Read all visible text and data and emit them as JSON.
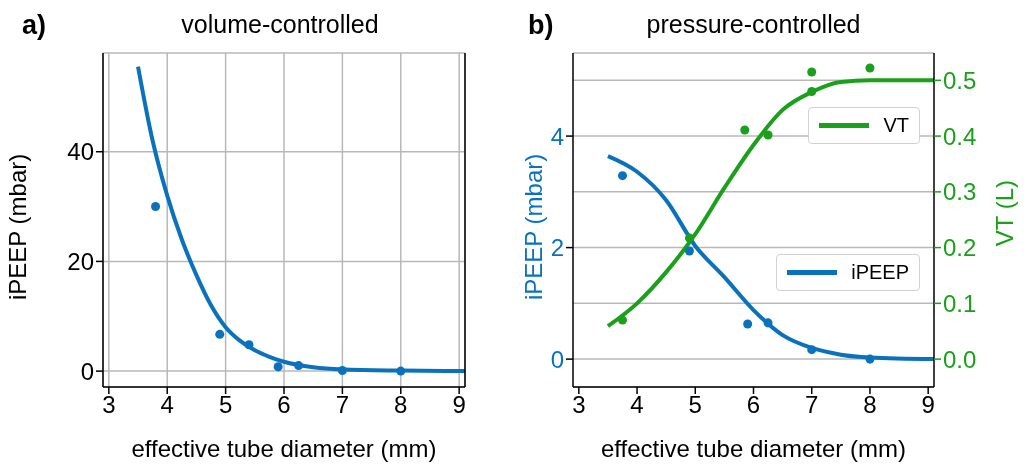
{
  "chart_data": [
    {
      "type": "line",
      "title": "volume-controlled",
      "xlabel": "effective tube diameter (mm)",
      "ylabel": "iPEEP (mbar)",
      "annotations": [
        "a)"
      ],
      "xlim": [
        2.9,
        9.1
      ],
      "xticks": [
        3,
        4,
        5,
        6,
        7,
        8,
        9
      ],
      "ylim": [
        -2.9,
        58
      ],
      "yticks": [
        0,
        20,
        40
      ],
      "grid": true,
      "series": [
        {
          "marker": "none",
          "color": "#0a72bd",
          "x": [
            3.5,
            3.75,
            4,
            4.25,
            4.5,
            4.75,
            5,
            5.25,
            5.5,
            5.75,
            6,
            6.5,
            7,
            8,
            9.1
          ],
          "values": [
            55.5,
            42,
            32,
            24,
            17.5,
            12,
            8,
            5.5,
            3.8,
            2.6,
            1.7,
            0.7,
            0.3,
            0.1,
            0
          ]
        },
        {
          "type": "scatter",
          "marker": "circle",
          "color": "#0a72bd",
          "x": [
            3.8,
            4.9,
            5.4,
            5.9,
            6.25,
            7.0,
            8.0
          ],
          "values": [
            30,
            6.7,
            4.8,
            0.8,
            1.0,
            0.1,
            0
          ]
        }
      ]
    },
    {
      "type": "line",
      "title": "pressure-controlled",
      "xlabel": "effective tube diameter (mm)",
      "ylabel": "iPEEP (mbar)",
      "y2label": "VT (L)",
      "annotations": [
        "b)"
      ],
      "xlim": [
        2.9,
        9.1
      ],
      "xticks": [
        3,
        4,
        5,
        6,
        7,
        8,
        9
      ],
      "ylim": [
        -0.5,
        5.49
      ],
      "yticks": [
        0,
        2,
        4
      ],
      "y2lim": [
        -0.05,
        0.549
      ],
      "y2ticks": [
        {
          "value": 0,
          "label": "0.0"
        },
        0.1,
        0.2,
        0.3,
        0.4,
        0.5
      ],
      "grid": "y",
      "legend": "right",
      "series": [
        {
          "marker": "none",
          "name": "VT",
          "axis": "y2",
          "color": "#1aa01a",
          "x": [
            3.5,
            4,
            4.5,
            5,
            5.5,
            6,
            6.5,
            7,
            7.5,
            8,
            9.1
          ],
          "values": [
            0.059,
            0.1,
            0.156,
            0.224,
            0.307,
            0.384,
            0.447,
            0.479,
            0.497,
            0.5,
            0.5
          ]
        },
        {
          "type": "scatter",
          "marker": "circle",
          "axis": "y2",
          "color": "#1aa01a",
          "x": [
            3.75,
            4.9,
            5.85,
            6.25,
            7.0,
            7.0,
            8.0
          ],
          "values": [
            0.07,
            0.217,
            0.411,
            0.402,
            0.515,
            0.48,
            0.522
          ]
        },
        {
          "marker": "none",
          "name": "iPEEP",
          "color": "#0a72bd",
          "x": [
            3.5,
            4,
            4.5,
            5,
            5.5,
            6,
            6.5,
            7,
            7.5,
            8,
            9.1
          ],
          "values": [
            3.64,
            3.36,
            2.85,
            2.03,
            1.47,
            0.88,
            0.43,
            0.2,
            0.08,
            0.03,
            0
          ]
        },
        {
          "type": "scatter",
          "marker": "circle",
          "color": "#0a72bd",
          "x": [
            3.75,
            4.9,
            5.9,
            6.25,
            7.0,
            8.0
          ],
          "values": [
            3.29,
            1.94,
            0.63,
            0.65,
            0.17,
            0
          ]
        }
      ]
    }
  ]
}
